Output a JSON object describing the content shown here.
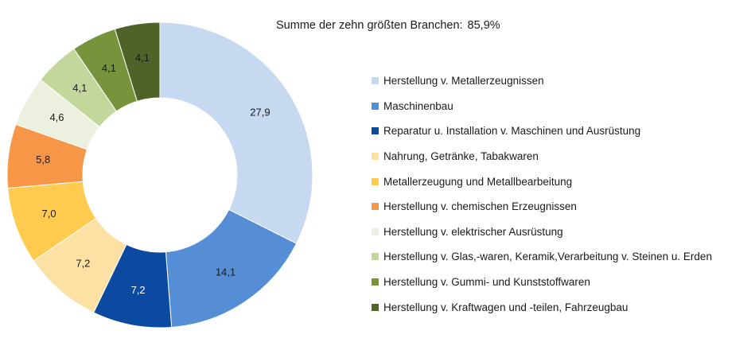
{
  "summary": {
    "label": "Summe der zehn größten Branchen:",
    "value": "85,9%"
  },
  "chart_data": {
    "type": "pie",
    "variant": "donut",
    "title": "",
    "start_angle_deg": 0,
    "direction": "clockwise",
    "legend_position": "right",
    "categories": [
      "Herstellung v. Metallerzeugnissen",
      "Maschinenbau",
      "Reparatur u. Installation v. Maschinen und Ausrüstung",
      "Nahrung, Getränke, Tabakwaren",
      "Metallerzeugung und Metallbearbeitung",
      "Herstellung v. chemischen Erzeugnissen",
      "Herstellung v. elektrischer Ausrüstung",
      "Herstellung v. Glas,-waren, Keramik,Verarbeitung v. Steinen u. Erden",
      "Herstellung v. Gummi- und Kunststoffwaren",
      "Herstellung v. Kraftwagen und -teilen, Fahrzeugbau"
    ],
    "values": [
      27.9,
      14.1,
      7.2,
      7.2,
      7.0,
      5.8,
      4.6,
      4.1,
      4.1,
      4.1
    ],
    "value_labels": [
      "27,9",
      "14,1",
      "7,2",
      "7,2",
      "7,0",
      "5,8",
      "4,6",
      "4,1",
      "4,1",
      "4,1"
    ],
    "colors": [
      "#c6d9f1",
      "#558ed5",
      "#0b4aa0",
      "#fde1a4",
      "#ffcb4f",
      "#f79646",
      "#ebf1de",
      "#c3d69b",
      "#77933c",
      "#4f6228"
    ],
    "label_colors": [
      "#1a1a1a",
      "#1a1a1a",
      "#ffffff",
      "#1a1a1a",
      "#1a1a1a",
      "#1a1a1a",
      "#1a1a1a",
      "#1a1a1a",
      "#1a1a1a",
      "#1a1a1a"
    ]
  }
}
